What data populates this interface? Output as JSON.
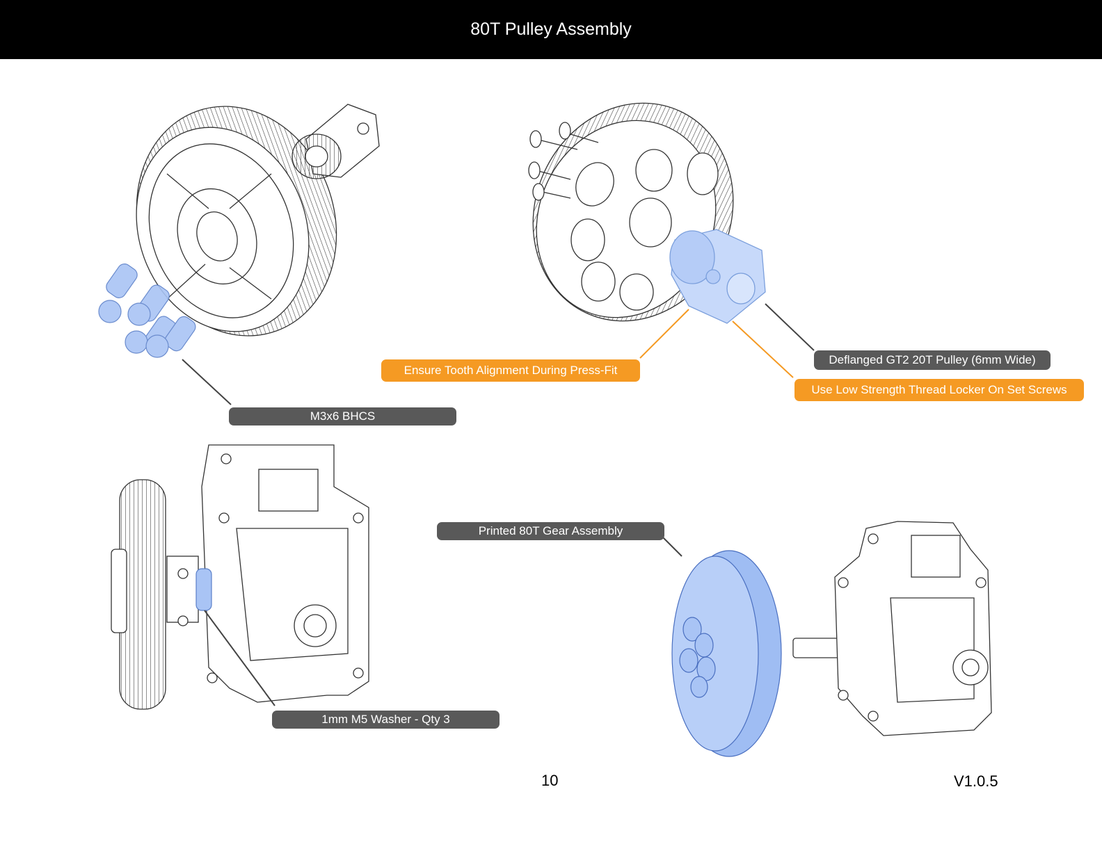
{
  "header": {
    "title": "80T Pulley Assembly"
  },
  "callouts": {
    "bhcs": "M3x6 BHCS",
    "press_fit": "Ensure Tooth Alignment During Press-Fit",
    "gt2": "Deflanged GT2 20T Pulley (6mm Wide)",
    "thread_locker": "Use Low Strength Thread Locker On Set Screws",
    "gear_assembly": "Printed 80T Gear Assembly",
    "washer": "1mm M5 Washer - Qty 3"
  },
  "footer": {
    "page_number": "10",
    "version": "V1.0.5"
  },
  "colors": {
    "header_bg": "#000000",
    "label_gray": "#595959",
    "label_orange": "#f59a23",
    "highlight_blue": "#a9c4f5"
  }
}
